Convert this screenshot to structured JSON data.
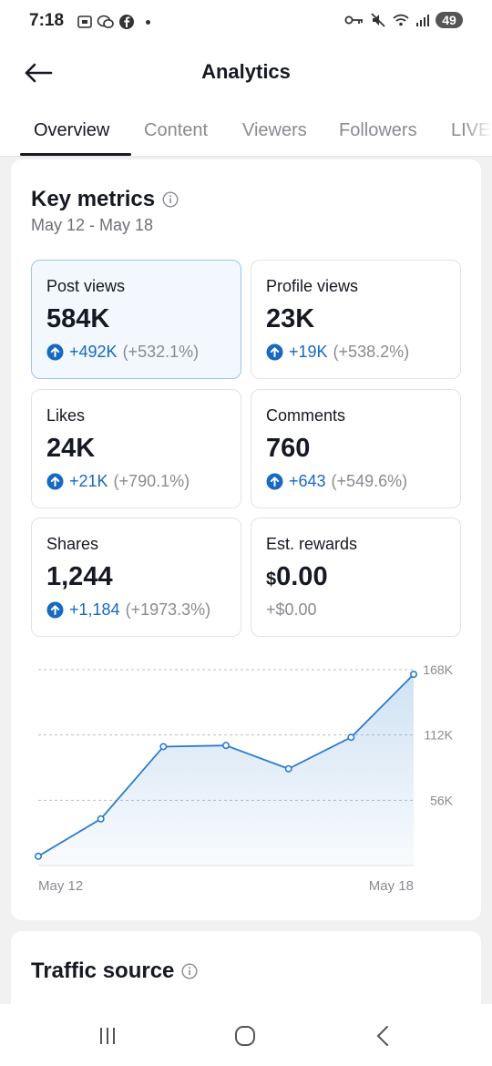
{
  "status_bar": {
    "time": "7:18",
    "battery": "49",
    "left_icons": [
      "screenshot-icon",
      "wechat-icon",
      "facebook-icon"
    ],
    "right_icons": [
      "vpn-key-icon",
      "mute-icon",
      "wifi-icon",
      "signal-icon"
    ]
  },
  "header": {
    "title": "Analytics"
  },
  "tabs": [
    {
      "label": "Overview",
      "active": true
    },
    {
      "label": "Content",
      "active": false
    },
    {
      "label": "Viewers",
      "active": false
    },
    {
      "label": "Followers",
      "active": false
    },
    {
      "label": "LIVE",
      "active": false
    }
  ],
  "key_metrics": {
    "title": "Key metrics",
    "date_range": "May 12 - May 18",
    "metrics": [
      {
        "label": "Post views",
        "value": "584K",
        "delta": "+492K",
        "pct": "(+532.1%)",
        "trend": "up",
        "selected": true
      },
      {
        "label": "Profile views",
        "value": "23K",
        "delta": "+19K",
        "pct": "(+538.2%)",
        "trend": "up",
        "selected": false
      },
      {
        "label": "Likes",
        "value": "24K",
        "delta": "+21K",
        "pct": "(+790.1%)",
        "trend": "up",
        "selected": false
      },
      {
        "label": "Comments",
        "value": "760",
        "delta": "+643",
        "pct": "(+549.6%)",
        "trend": "up",
        "selected": false
      },
      {
        "label": "Shares",
        "value": "1,244",
        "delta": "+1,184",
        "pct": "(+1973.3%)",
        "trend": "up",
        "selected": false
      },
      {
        "label": "Est. rewards",
        "currency": "$",
        "value": "0.00",
        "delta": "+$0.00",
        "pct": "",
        "trend": "flat",
        "selected": false
      }
    ]
  },
  "chart_data": {
    "type": "area",
    "x": [
      "May 12",
      "May 13",
      "May 14",
      "May 15",
      "May 16",
      "May 17",
      "May 18"
    ],
    "series": [
      {
        "values": [
          8000,
          40000,
          102000,
          103000,
          83000,
          110000,
          164000
        ]
      }
    ],
    "y_ticks": [
      "168K",
      "112K",
      "56K"
    ],
    "y_tick_values": [
      168000,
      112000,
      56000
    ],
    "x_tick_labels": [
      "May 12",
      "May 18"
    ],
    "ylim": [
      0,
      168000
    ],
    "grid": true,
    "color": "#2a7ccc"
  },
  "traffic_source": {
    "title": "Traffic source"
  },
  "colors": {
    "accent": "#1769c1",
    "text": "#161823",
    "muted": "#8a8b91"
  }
}
